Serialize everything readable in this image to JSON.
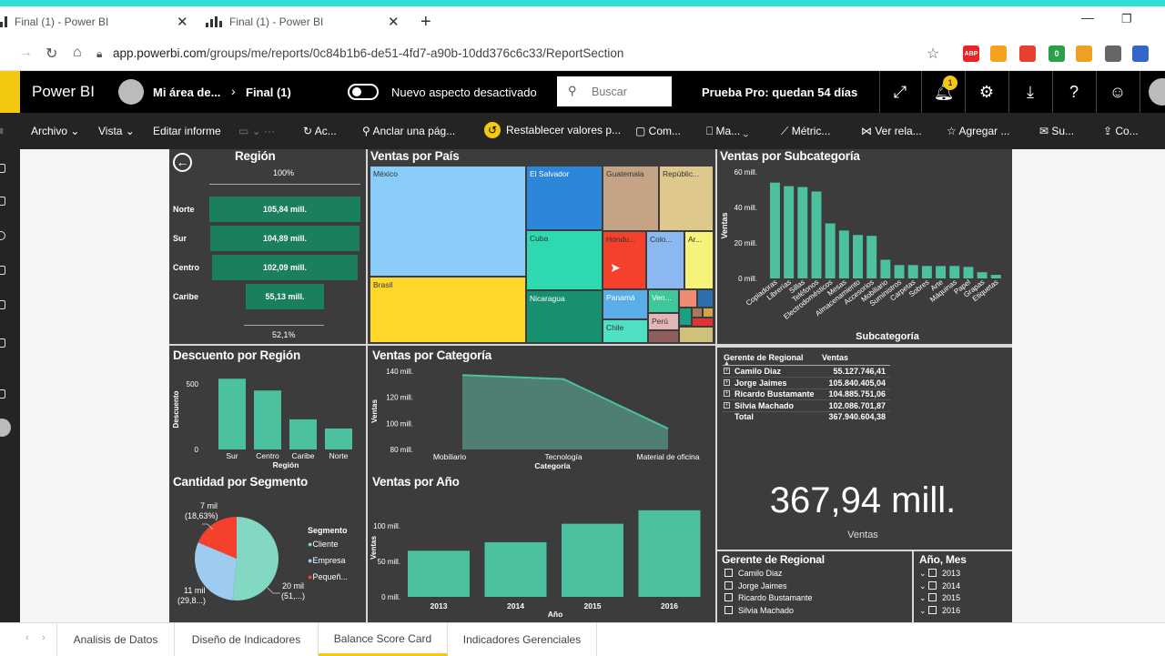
{
  "browser": {
    "tabs": [
      {
        "title": "Final (1) - Power BI"
      },
      {
        "title": "Final (1) - Power BI"
      }
    ],
    "url_domain": "app.powerbi.com",
    "url_path": "/groups/me/reports/0c84b1b6-de51-4fd7-a90b-10dd376c6c33/ReportSection",
    "extensions": [
      {
        "label": "ABP",
        "color": "#e22"
      },
      {
        "label": "",
        "color": "#f6a21e"
      },
      {
        "label": "",
        "color": "#e8402f"
      },
      {
        "label": "0",
        "color": "#2aa04a"
      },
      {
        "label": "",
        "color": "#f0a020"
      },
      {
        "label": "",
        "color": "#666"
      },
      {
        "label": "",
        "color": "#3366cc"
      }
    ]
  },
  "header": {
    "app_name": "Power BI",
    "workspace": "Mi área de...",
    "report_name": "Final (1)",
    "toggle_label": "Nuevo aspecto desactivado",
    "search_placeholder": "Buscar",
    "trial": "Prueba Pro: quedan 54 días",
    "notification_count": "1"
  },
  "toolbar": {
    "items": [
      "Archivo",
      "Vista",
      "Editar informe",
      "Ac...",
      "Anclar una pág...",
      "Restablecer valores p...",
      "Com...",
      "Ma...",
      "Métric...",
      "Ver rela...",
      "Agregar ...",
      "Su...",
      "Co..."
    ]
  },
  "region": {
    "title": "Región",
    "top_pct": "100%",
    "bottom_pct": "52,1%",
    "rows": [
      {
        "label": "Norte",
        "value": "105,84 mill.",
        "v": 105.84
      },
      {
        "label": "Sur",
        "value": "104,89 mill.",
        "v": 104.89
      },
      {
        "label": "Centro",
        "value": "102,09 mill.",
        "v": 102.09
      },
      {
        "label": "Caribe",
        "value": "55,13 mill.",
        "v": 55.13
      }
    ]
  },
  "pais": {
    "title": "Ventas por País",
    "labels": [
      "México",
      "Brasil",
      "El Salvador",
      "Cuba",
      "Nicaragua",
      "Guatemala",
      "Repúblic...",
      "Hondu...",
      "Colo...",
      "Ar...",
      "Panamá",
      "Chile",
      "Ven...",
      "Perú"
    ]
  },
  "subcat": {
    "title": "Ventas por Subcategoría",
    "xlabel": "Subcategoría",
    "ylabel": "Ventas",
    "yticks": [
      "60 mill.",
      "40 mill.",
      "20 mill.",
      "0 mill."
    ],
    "categories": [
      "Copiadoras",
      "Librerías",
      "Sillas",
      "Teléfonos",
      "Electrodomésticos",
      "Mesas",
      "Almacenamiento",
      "Accesorios",
      "Mobiliario",
      "Suministros",
      "Carpetas",
      "Sobres",
      "Arte",
      "Máquinas",
      "Papel",
      "Grapas",
      "Etiquetas"
    ],
    "values": [
      54,
      52,
      51.5,
      49,
      31,
      27,
      24.5,
      24,
      10.5,
      7.5,
      7.5,
      7,
      7,
      7,
      6.5,
      3.5,
      2
    ]
  },
  "descuento": {
    "title": "Descuento por Región",
    "xlabel": "Región",
    "ylabel": "Descuento",
    "yticks": [
      "500",
      "0"
    ],
    "categories": [
      "Sur",
      "Centro",
      "Caribe",
      "Norte"
    ],
    "values": [
      540,
      450,
      230,
      160
    ]
  },
  "categoria": {
    "title": "Ventas por Categoría",
    "xlabel": "Categoría",
    "ylabel": "Ventas",
    "yticks": [
      "140 mill.",
      "120 mill.",
      "100 mill.",
      "80 mill."
    ],
    "categories": [
      "Mobiliario",
      "Tecnología",
      "Material de oficina"
    ],
    "values": [
      137,
      134,
      96
    ]
  },
  "table": {
    "col1": "Gerente de Regional",
    "col2": "Ventas",
    "rows": [
      {
        "name": "Camilo Diaz",
        "value": "55.127.746,41"
      },
      {
        "name": "Jorge Jaimes",
        "value": "105.840.405,04"
      },
      {
        "name": "Ricardo Bustamante",
        "value": "104.885.751,06"
      },
      {
        "name": "Silvia Machado",
        "value": "102.086.701,87"
      }
    ],
    "total_label": "Total",
    "total_value": "367.940.604,38"
  },
  "card": {
    "value": "367,94 mill.",
    "label": "Ventas"
  },
  "segmento": {
    "title": "Cantidad por Segmento",
    "legend_title": "Segmento",
    "legend": [
      {
        "name": "Cliente",
        "color": "#82d8c2"
      },
      {
        "name": "Empresa",
        "color": "#9ecbf0"
      },
      {
        "name": "Pequeñ...",
        "color": "#f5412c"
      }
    ],
    "slices": [
      {
        "name": "Cliente",
        "value": 51.5,
        "color": "#82d8c2"
      },
      {
        "name": "Empresa",
        "value": 29.8,
        "color": "#9ecbf0"
      },
      {
        "name": "Pequeñ...",
        "value": 18.63,
        "color": "#f5412c"
      }
    ],
    "label_small_1": "7 mil",
    "label_small_2": "(18,63%)",
    "label_mid_1": "11 mil",
    "label_mid_2": "(29,8...)",
    "label_big_1": "20 mil",
    "label_big_2": "(51,...)"
  },
  "anio": {
    "title": "Ventas por Año",
    "xlabel": "Año",
    "ylabel": "Ventas",
    "yticks": [
      "100 mill.",
      "50 mill.",
      "0 mill."
    ],
    "categories": [
      "2013",
      "2014",
      "2015",
      "2016"
    ],
    "values": [
      65,
      77,
      103,
      122
    ]
  },
  "slicer_gerente": {
    "title": "Gerente de Regional",
    "items": [
      "Camilo Diaz",
      "Jorge Jaimes",
      "Ricardo Bustamante",
      "Silvia Machado"
    ]
  },
  "slicer_anio": {
    "title": "Año, Mes",
    "items": [
      "2013",
      "2014",
      "2015",
      "2016"
    ]
  },
  "pagetabs": [
    "Analisis de Datos",
    "Diseño de Indicadores",
    "Balance Score Card",
    "Indicadores Gerenciales"
  ],
  "colors": {
    "teal": "#4bc1a0",
    "dark_green": "#1a7f5a",
    "panel": "#3c3c3c"
  }
}
